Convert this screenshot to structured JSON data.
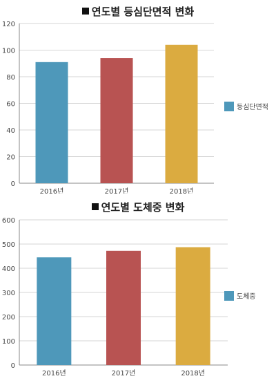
{
  "chart_data": [
    {
      "type": "bar",
      "title": "연도별 등심단면적 변화",
      "categories": [
        "2016년",
        "2017년",
        "2018년"
      ],
      "values": [
        91,
        94,
        104
      ],
      "colors": [
        "#4e98ba",
        "#b85352",
        "#dbab40"
      ],
      "ylim": [
        0,
        120
      ],
      "yticks": [
        0,
        20,
        40,
        60,
        80,
        100,
        120
      ],
      "grid": true,
      "legend": {
        "label": "등심단면적",
        "color": "#4e98ba",
        "placement": "right"
      }
    },
    {
      "type": "bar",
      "title": "연도별 도체중 변화",
      "categories": [
        "2016년",
        "2017년",
        "2018년"
      ],
      "values": [
        445,
        472,
        487
      ],
      "colors": [
        "#4e98ba",
        "#b85352",
        "#dbab40"
      ],
      "ylim": [
        0,
        600
      ],
      "yticks": [
        0,
        100,
        200,
        300,
        400,
        500,
        600
      ],
      "grid": true,
      "legend": {
        "label": "도체중",
        "color": "#4e98ba",
        "placement": "right"
      }
    }
  ]
}
